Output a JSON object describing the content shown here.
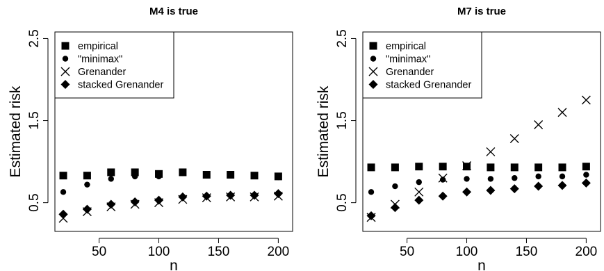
{
  "chart_data": [
    {
      "type": "scatter",
      "title": "M4 is true",
      "xlabel": "n",
      "ylabel": "Estimated risk",
      "xlim": [
        13,
        212
      ],
      "ylim": [
        0.15,
        2.58
      ],
      "xticks": [
        50,
        100,
        150,
        200
      ],
      "yticks": [
        0.5,
        1.5,
        2.5
      ],
      "x": [
        20,
        40,
        60,
        80,
        100,
        120,
        140,
        160,
        180,
        200
      ],
      "legend_position": "top-left",
      "series": [
        {
          "name": "empirical",
          "marker": "square",
          "values": [
            0.83,
            0.83,
            0.87,
            0.87,
            0.85,
            0.87,
            0.84,
            0.84,
            0.83,
            0.82
          ]
        },
        {
          "name": "\"minimax\"",
          "marker": "circle",
          "values": [
            0.63,
            0.72,
            0.79,
            0.82,
            0.82,
            0.86,
            0.84,
            0.83,
            0.83,
            0.81
          ]
        },
        {
          "name": "Grenander",
          "marker": "x",
          "values": [
            0.31,
            0.39,
            0.45,
            0.48,
            0.5,
            0.54,
            0.56,
            0.57,
            0.57,
            0.58
          ]
        },
        {
          "name": "stacked Grenander",
          "marker": "diamond",
          "values": [
            0.36,
            0.42,
            0.48,
            0.51,
            0.53,
            0.57,
            0.58,
            0.59,
            0.59,
            0.61
          ]
        }
      ]
    },
    {
      "type": "scatter",
      "title": "M7 is true",
      "xlabel": "n",
      "ylabel": "Estimated risk",
      "xlim": [
        13,
        212
      ],
      "ylim": [
        0.15,
        2.58
      ],
      "xticks": [
        50,
        100,
        150,
        200
      ],
      "yticks": [
        0.5,
        1.5,
        2.5
      ],
      "x": [
        20,
        40,
        60,
        80,
        100,
        120,
        140,
        160,
        180,
        200
      ],
      "legend_position": "top-left",
      "series": [
        {
          "name": "empirical",
          "marker": "square",
          "values": [
            0.93,
            0.93,
            0.94,
            0.94,
            0.94,
            0.93,
            0.93,
            0.93,
            0.93,
            0.94
          ]
        },
        {
          "name": "\"minimax\"",
          "marker": "circle",
          "values": [
            0.63,
            0.7,
            0.75,
            0.78,
            0.79,
            0.79,
            0.8,
            0.82,
            0.82,
            0.84
          ]
        },
        {
          "name": "Grenander",
          "marker": "x",
          "values": [
            0.32,
            0.48,
            0.63,
            0.8,
            0.95,
            1.12,
            1.28,
            1.45,
            1.6,
            1.75
          ]
        },
        {
          "name": "stacked Grenander",
          "marker": "diamond",
          "values": [
            0.34,
            0.44,
            0.53,
            0.58,
            0.63,
            0.65,
            0.67,
            0.7,
            0.71,
            0.74
          ]
        }
      ]
    }
  ]
}
